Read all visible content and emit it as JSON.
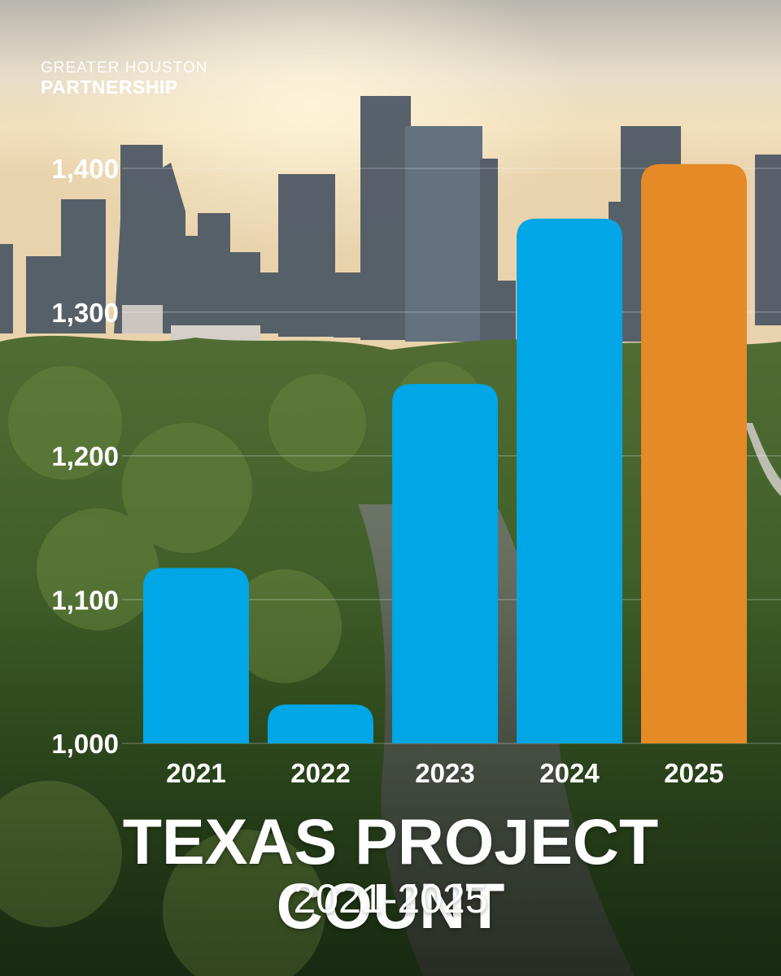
{
  "brand": {
    "line1": "GREATER HOUSTON",
    "line2": "PARTNERSHIP"
  },
  "colors": {
    "bar_default": "#00a6e6",
    "bar_highlight": "#e58a26",
    "text": "#ffffff"
  },
  "chart_data": {
    "type": "bar",
    "title": "TEXAS PROJECT COUNT",
    "subtitle": "2021-2025",
    "categories": [
      "2021",
      "2022",
      "2023",
      "2024",
      "2025"
    ],
    "values": [
      1122,
      1027,
      1250,
      1365,
      1403
    ],
    "highlight": [
      "2025"
    ],
    "ylim": [
      1000,
      1400
    ],
    "yticks": [
      1000,
      1100,
      1200,
      1300,
      1400
    ],
    "ytick_labels": [
      "1,000",
      "1,100",
      "1,200",
      "1,300",
      "1,400"
    ],
    "grid": true,
    "legend": "none"
  }
}
